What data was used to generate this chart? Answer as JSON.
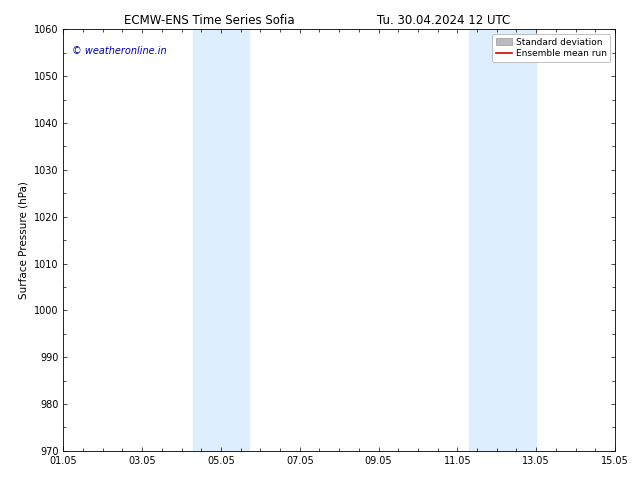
{
  "title_left": "ECMW-ENS Time Series Sofia",
  "title_right": "Tu. 30.04.2024 12 UTC",
  "ylabel": "Surface Pressure (hPa)",
  "ylim": [
    970,
    1060
  ],
  "yticks": [
    970,
    980,
    990,
    1000,
    1010,
    1020,
    1030,
    1040,
    1050,
    1060
  ],
  "xlim_start": 0,
  "xlim_end": 14,
  "xtick_positions": [
    0,
    2,
    4,
    6,
    8,
    10,
    12,
    14
  ],
  "xtick_labels": [
    "01.05",
    "03.05",
    "05.05",
    "07.05",
    "09.05",
    "11.05",
    "13.05",
    "15.05"
  ],
  "shaded_bands": [
    {
      "x_start": 3.3,
      "x_end": 4.7
    },
    {
      "x_start": 10.3,
      "x_end": 12.0
    }
  ],
  "band_color": "#ddeeff",
  "watermark_text": "© weatheronline.in",
  "watermark_color": "#0000bb",
  "watermark_fontsize": 7,
  "legend_entries": [
    {
      "label": "Standard deviation",
      "color": "#bbbbbb",
      "type": "rect"
    },
    {
      "label": "Ensemble mean run",
      "color": "#dd0000",
      "type": "line"
    }
  ],
  "title_fontsize": 8.5,
  "tick_fontsize": 7,
  "ylabel_fontsize": 7.5,
  "background_color": "#ffffff",
  "plot_bg_color": "#ffffff"
}
